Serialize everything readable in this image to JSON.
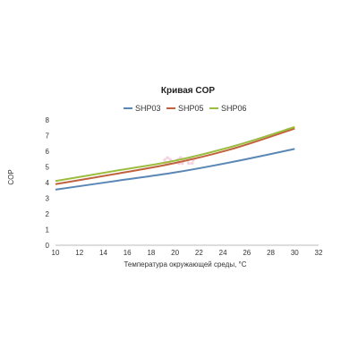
{
  "chart_data": {
    "type": "line",
    "title": "Кривая COP",
    "xlabel": "Температура окружающей среды, °С",
    "ylabel": "COP",
    "xlim": [
      10,
      32
    ],
    "ylim": [
      0,
      8
    ],
    "x_ticks": [
      "10",
      "12",
      "14",
      "16",
      "18",
      "20",
      "22",
      "24",
      "26",
      "28",
      "30",
      "32"
    ],
    "y_ticks": [
      "0",
      "1",
      "2",
      "3",
      "4",
      "5",
      "6",
      "7",
      "8"
    ],
    "grid": false,
    "legend_position": "top-center",
    "series": [
      {
        "name": "SHP03",
        "color": "#5b87b5",
        "x": [
          10,
          15,
          20,
          25,
          30
        ],
        "y": [
          3.55,
          4.1,
          4.65,
          5.35,
          6.15
        ]
      },
      {
        "name": "SHP05",
        "color": "#c0623f",
        "x": [
          10,
          15,
          20,
          25,
          30
        ],
        "y": [
          3.9,
          4.55,
          5.25,
          6.2,
          7.45
        ]
      },
      {
        "name": "SHP06",
        "color": "#9cbd3d",
        "x": [
          10,
          15,
          20,
          25,
          30
        ],
        "y": [
          4.1,
          4.75,
          5.4,
          6.35,
          7.55
        ]
      }
    ]
  }
}
